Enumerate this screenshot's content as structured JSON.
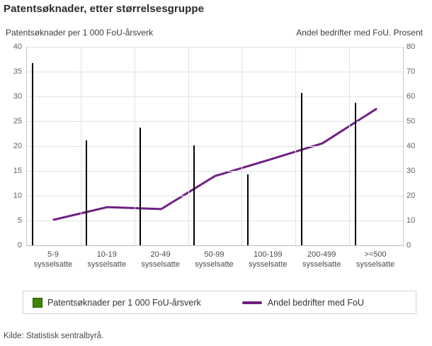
{
  "title": "Patentsøknader, etter størrelsesgruppe",
  "source": "Kilde: Statistisk sentralbyrå.",
  "legend": {
    "bar_label": "Patentsøknader per 1 000 FoU-årsverk",
    "line_label": "Andel bedrifter med FoU"
  },
  "colors": {
    "bar": "#3e8506",
    "bar_border": "#000000",
    "line": "#6f2183",
    "grid": "#e2e2e2",
    "axis_line": "#c9c9c9",
    "baseline": "#bdbdbd",
    "tick_text": "#636363",
    "title_text": "#2b2b2b"
  },
  "chart_data": {
    "type": "combo (bar + line, dual axis)",
    "title": "Patentsøknader, etter størrelsesgruppe",
    "categories": [
      "5-9",
      "10-19",
      "20-49",
      "50-99",
      "100-199",
      "200-499",
      ">=500"
    ],
    "category_suffix": "sysselsatte",
    "left_axis": {
      "title": "Patentsøknader per 1 000 FoU-årsverk",
      "min": 0,
      "max": 40,
      "step": 5
    },
    "right_axis": {
      "title": "Andel bedrifter med FoU. Prosent",
      "min": 0,
      "max": 80,
      "step": 10
    },
    "grid": true,
    "legend_position": "bottom",
    "series": [
      {
        "name": "Patentsøknader per 1 000 FoU-årsverk",
        "type": "bar",
        "axis": "left",
        "values": [
          36.7,
          21.1,
          23.7,
          20.2,
          14.3,
          30.7,
          28.7
        ]
      },
      {
        "name": "Andel bedrifter med FoU",
        "type": "line",
        "axis": "right",
        "values": [
          10.3,
          15.4,
          14.6,
          27.9,
          34.4,
          41.1,
          54.9
        ]
      }
    ]
  }
}
